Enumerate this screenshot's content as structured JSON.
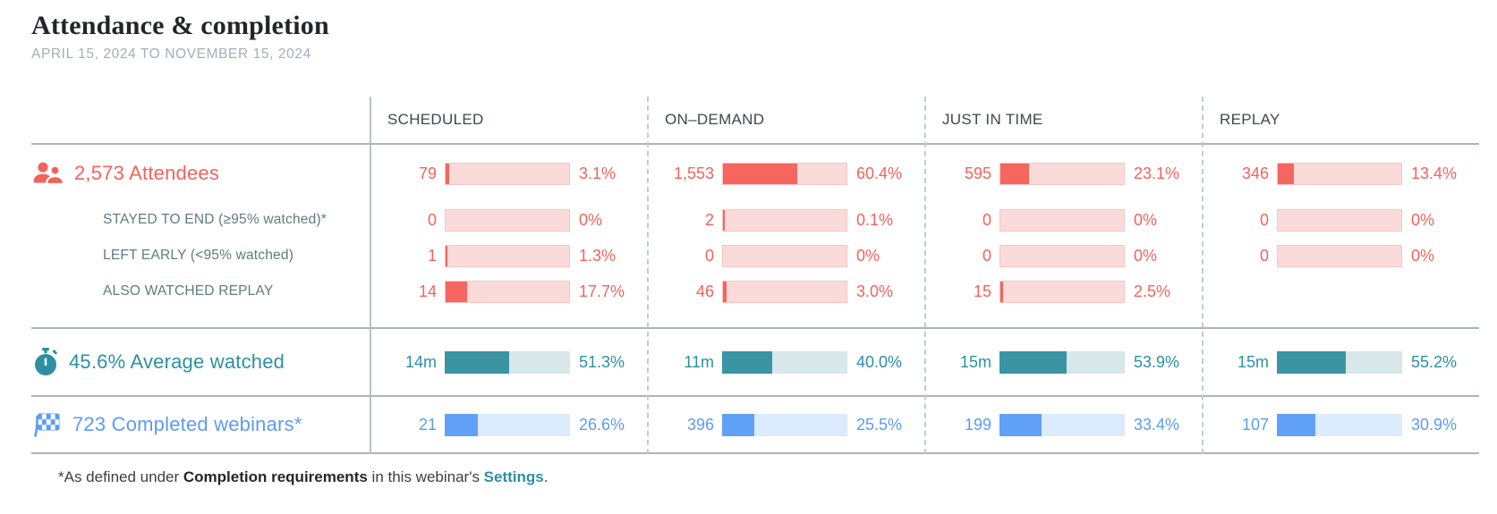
{
  "header": {
    "title": "Attendance & completion",
    "date_range": "APRIL 15, 2024 TO NOVEMBER 15, 2024"
  },
  "columns": [
    {
      "label": "SCHEDULED"
    },
    {
      "label": "ON–DEMAND"
    },
    {
      "label": "JUST IN TIME"
    },
    {
      "label": "REPLAY"
    }
  ],
  "icons": {
    "attendees": "people-icon",
    "average_watched": "stopwatch-icon",
    "completed_webinars": "checkered-flag-icon"
  },
  "attendees": {
    "label": "2,573 Attendees",
    "cells": [
      {
        "value": "79",
        "pct": "3.1%",
        "fill": 3.1
      },
      {
        "value": "1,553",
        "pct": "60.4%",
        "fill": 60.4
      },
      {
        "value": "595",
        "pct": "23.1%",
        "fill": 23.1
      },
      {
        "value": "346",
        "pct": "13.4%",
        "fill": 13.4
      }
    ]
  },
  "stayed_to_end": {
    "label": "STAYED TO END (≥95% watched)*",
    "cells": [
      {
        "value": "0",
        "pct": "0%",
        "fill": 0
      },
      {
        "value": "2",
        "pct": "0.1%",
        "fill": 0.1
      },
      {
        "value": "0",
        "pct": "0%",
        "fill": 0
      },
      {
        "value": "0",
        "pct": "0%",
        "fill": 0
      }
    ]
  },
  "left_early": {
    "label": "LEFT EARLY (<95% watched)",
    "cells": [
      {
        "value": "1",
        "pct": "1.3%",
        "fill": 1.3
      },
      {
        "value": "0",
        "pct": "0%",
        "fill": 0
      },
      {
        "value": "0",
        "pct": "0%",
        "fill": 0
      },
      {
        "value": "0",
        "pct": "0%",
        "fill": 0
      }
    ]
  },
  "also_watched_replay": {
    "label": "ALSO WATCHED REPLAY",
    "cells": [
      {
        "value": "14",
        "pct": "17.7%",
        "fill": 17.7
      },
      {
        "value": "46",
        "pct": "3.0%",
        "fill": 3.0
      },
      {
        "value": "15",
        "pct": "2.5%",
        "fill": 2.5
      }
    ]
  },
  "average_watched": {
    "label": "45.6% Average watched",
    "cells": [
      {
        "value": "14m",
        "pct": "51.3%",
        "fill": 51.3
      },
      {
        "value": "11m",
        "pct": "40.0%",
        "fill": 40.0
      },
      {
        "value": "15m",
        "pct": "53.9%",
        "fill": 53.9
      },
      {
        "value": "15m",
        "pct": "55.2%",
        "fill": 55.2
      }
    ]
  },
  "completed_webinars": {
    "label": "723 Completed webinars*",
    "cells": [
      {
        "value": "21",
        "pct": "26.6%",
        "fill": 26.6
      },
      {
        "value": "396",
        "pct": "25.5%",
        "fill": 25.5
      },
      {
        "value": "199",
        "pct": "33.4%",
        "fill": 33.4
      },
      {
        "value": "107",
        "pct": "30.9%",
        "fill": 30.9
      }
    ]
  },
  "footnote": {
    "prefix": "*As defined under ",
    "bold": "Completion requirements",
    "middle": " in this webinar's ",
    "link": "Settings",
    "suffix": "."
  },
  "colors": {
    "coral": "#F2635C",
    "coral_fill": "#F4665E",
    "coral_bg": "#FBDBDA",
    "teal": "#2B91A2",
    "teal_fill": "#3B94A3",
    "teal_bg": "#D7E7EA",
    "blue": "#5B9CF6",
    "blue_fill": "#61A0F7",
    "blue_bg": "#DCEBFD",
    "rule_gray": "#ABB4B8",
    "date_gray": "#A2AEBD",
    "sub_label_gray": "#5F7B82",
    "header_text": "#3D484D",
    "link_teal": "#2D8FA0"
  },
  "chart_data": {
    "type": "bar",
    "title": "Attendance & completion",
    "subtitle": "APRIL 15, 2024 TO NOVEMBER 15, 2024",
    "categories": [
      "SCHEDULED",
      "ON–DEMAND",
      "JUST IN TIME",
      "REPLAY"
    ],
    "series": [
      {
        "name": "Attendees",
        "total": 2573,
        "counts": [
          79,
          1553,
          595,
          346
        ],
        "percentages": [
          3.1,
          60.4,
          23.1,
          13.4
        ]
      },
      {
        "name": "Stayed to end (≥95% watched)",
        "counts": [
          0,
          2,
          0,
          0
        ],
        "percentages": [
          0,
          0.1,
          0,
          0
        ]
      },
      {
        "name": "Left early (<95% watched)",
        "counts": [
          1,
          0,
          0,
          0
        ],
        "percentages": [
          1.3,
          0,
          0,
          0
        ]
      },
      {
        "name": "Also watched replay",
        "counts": [
          14,
          46,
          15,
          null
        ],
        "percentages": [
          17.7,
          3.0,
          2.5,
          null
        ]
      },
      {
        "name": "Average watched",
        "overall_percent": 45.6,
        "durations": [
          "14m",
          "11m",
          "15m",
          "15m"
        ],
        "percentages": [
          51.3,
          40.0,
          53.9,
          55.2
        ]
      },
      {
        "name": "Completed webinars",
        "total": 723,
        "counts": [
          21,
          396,
          199,
          107
        ],
        "percentages": [
          26.6,
          25.5,
          33.4,
          30.9
        ]
      }
    ],
    "legend_position": "none",
    "grid": false
  }
}
